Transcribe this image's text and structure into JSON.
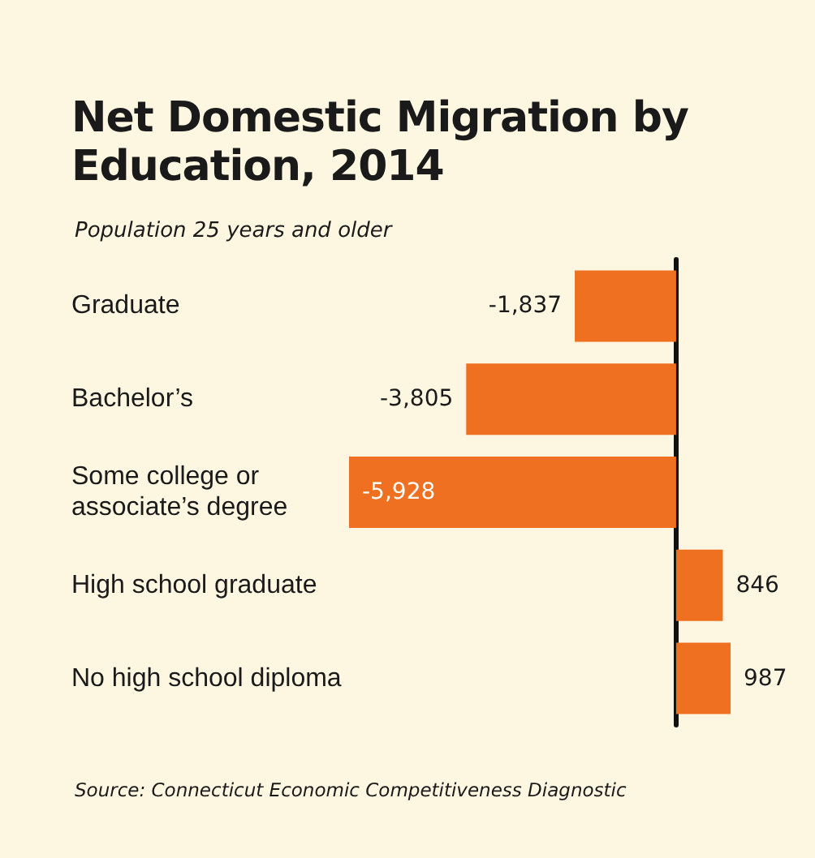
{
  "chart_data": {
    "type": "bar",
    "orientation": "horizontal",
    "title": "Net Domestic Migration by Education, 2014",
    "subtitle": "Population 25 years and older",
    "categories": [
      "Graduate",
      "Bachelor’s",
      "Some college or associate’s degree",
      "High school graduate",
      "No high school diploma"
    ],
    "values": [
      -1837,
      -3805,
      -5928,
      846,
      987
    ],
    "value_labels": [
      "-1,837",
      "-3,805",
      "-5,928",
      "846",
      "987"
    ],
    "color": "#f07022",
    "tick_labels": "y",
    "annotations": [
      "Source: Connecticut Economic Competitiveness Diagnostic"
    ]
  }
}
